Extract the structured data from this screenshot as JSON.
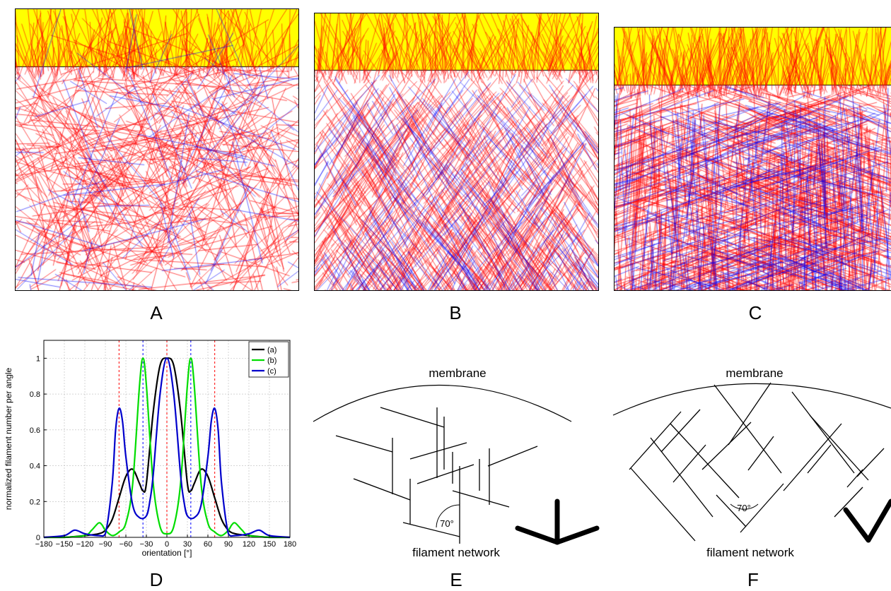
{
  "panels": {
    "a": {
      "letter": "A"
    },
    "b": {
      "letter": "B"
    },
    "c": {
      "letter": "C"
    },
    "d": {
      "letter": "D"
    },
    "e": {
      "letter": "E",
      "membrane_label": "membrane",
      "network_label": "filament network",
      "angle_label": "70°"
    },
    "f": {
      "letter": "F",
      "membrane_label": "membrane",
      "network_label": "filament network",
      "angle_label": "70°"
    }
  },
  "colors": {
    "band": "#ffff00",
    "filament_red": "#ff0000",
    "filament_blue": "#0000ff",
    "curve_a": "#000000",
    "curve_b": "#00dd00",
    "curve_c": "#0000cc"
  },
  "chart_data": {
    "type": "line",
    "xlabel": "orientation [°]",
    "ylabel": "normalized filament number per angle",
    "xlim": [
      -180,
      180
    ],
    "ylim": [
      0,
      1.1
    ],
    "x_ticks": [
      "−180",
      "−150",
      "−120",
      "−90",
      "−60",
      "−30",
      "0",
      "30",
      "60",
      "90",
      "120",
      "150",
      "180"
    ],
    "x_tick_values": [
      -180,
      -150,
      -120,
      -90,
      -60,
      -30,
      0,
      30,
      60,
      90,
      120,
      150,
      180
    ],
    "y_ticks": [
      "0",
      "0.2",
      "0.4",
      "0.6",
      "0.8",
      "1"
    ],
    "y_tick_values": [
      0,
      0.2,
      0.4,
      0.6,
      0.8,
      1
    ],
    "grid": true,
    "legend_position": "top-right",
    "reference_lines": [
      {
        "x": -70,
        "color": "#ff0000"
      },
      {
        "x": 0,
        "color": "#ff0000"
      },
      {
        "x": 70,
        "color": "#ff0000"
      },
      {
        "x": -35,
        "color": "#0000ff"
      },
      {
        "x": 35,
        "color": "#0000ff"
      }
    ],
    "series": [
      {
        "name": "(a)",
        "color": "#000000",
        "x": [
          -180,
          -150,
          -120,
          -100,
          -90,
          -80,
          -70,
          -60,
          -50,
          -40,
          -35,
          -30,
          -20,
          -10,
          0,
          10,
          20,
          30,
          35,
          40,
          50,
          60,
          70,
          80,
          90,
          100,
          120,
          150,
          180
        ],
        "y": [
          0,
          0,
          0.01,
          0.02,
          0.04,
          0.1,
          0.22,
          0.34,
          0.38,
          0.3,
          0.26,
          0.3,
          0.7,
          0.96,
          1.0,
          0.96,
          0.7,
          0.3,
          0.26,
          0.3,
          0.38,
          0.34,
          0.22,
          0.1,
          0.04,
          0.02,
          0.01,
          0,
          0
        ]
      },
      {
        "name": "(b)",
        "color": "#00dd00",
        "x": [
          -180,
          -150,
          -120,
          -110,
          -100,
          -95,
          -90,
          -80,
          -70,
          -60,
          -50,
          -40,
          -35,
          -30,
          -20,
          -10,
          0,
          10,
          20,
          30,
          35,
          40,
          50,
          60,
          70,
          80,
          90,
          95,
          100,
          110,
          120,
          150,
          180
        ],
        "y": [
          0,
          0,
          0.01,
          0.04,
          0.08,
          0.07,
          0.04,
          0.01,
          0.03,
          0.08,
          0.3,
          0.85,
          1.0,
          0.85,
          0.3,
          0.06,
          0.02,
          0.06,
          0.3,
          0.85,
          1.0,
          0.85,
          0.3,
          0.08,
          0.03,
          0.01,
          0.04,
          0.07,
          0.08,
          0.04,
          0.01,
          0,
          0
        ]
      },
      {
        "name": "(c)",
        "color": "#0000cc",
        "x": [
          -180,
          -150,
          -135,
          -120,
          -100,
          -90,
          -80,
          -75,
          -70,
          -65,
          -60,
          -50,
          -40,
          -30,
          -25,
          -20,
          -10,
          0,
          10,
          20,
          25,
          30,
          40,
          50,
          60,
          65,
          70,
          75,
          80,
          90,
          100,
          120,
          135,
          150,
          180
        ],
        "y": [
          0,
          0.01,
          0.04,
          0.02,
          0.01,
          0.02,
          0.3,
          0.6,
          0.72,
          0.65,
          0.45,
          0.18,
          0.11,
          0.12,
          0.2,
          0.35,
          0.8,
          1.0,
          0.8,
          0.35,
          0.2,
          0.12,
          0.11,
          0.18,
          0.45,
          0.65,
          0.72,
          0.6,
          0.3,
          0.02,
          0.01,
          0.02,
          0.04,
          0.01,
          0
        ]
      }
    ]
  }
}
